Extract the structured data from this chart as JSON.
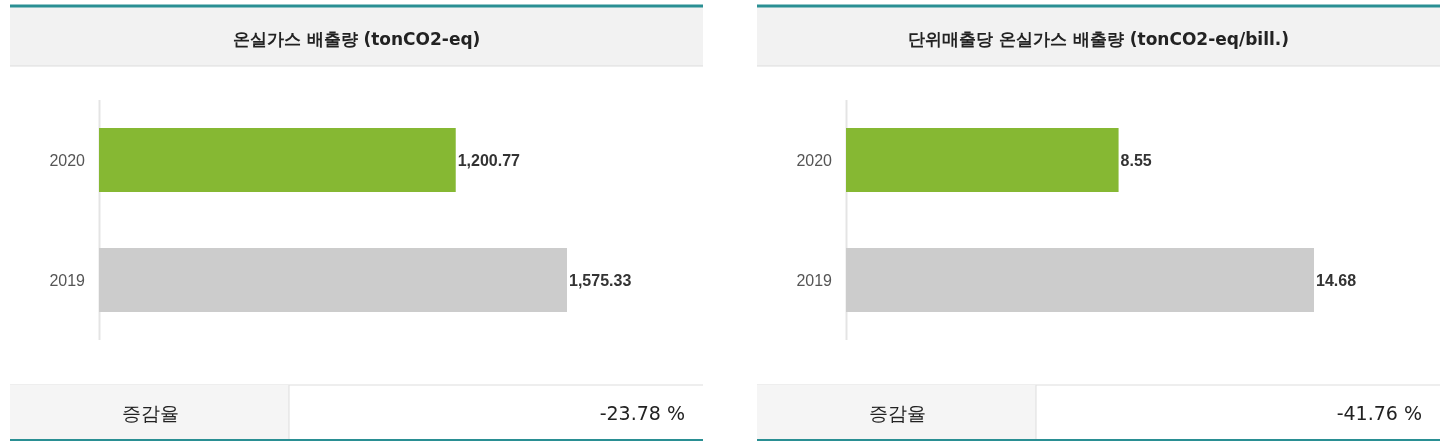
{
  "chart_data": [
    {
      "type": "bar",
      "orientation": "horizontal",
      "title": "온실가스 배출량 (tonCO2-eq)",
      "categories": [
        "2020",
        "2019"
      ],
      "values": [
        1200.77,
        1575.33
      ],
      "colors": [
        "#86b833",
        "#cccccc"
      ],
      "value_labels": [
        "1,200.77",
        "1,575.33"
      ],
      "annotations": [
        "증감율",
        "-23.78 %"
      ]
    },
    {
      "type": "bar",
      "orientation": "horizontal",
      "title": "단위매출당 온실가스 배출량 (tonCO2-eq/bill.)",
      "categories": [
        "2020",
        "2019"
      ],
      "values": [
        8.55,
        14.68
      ],
      "colors": [
        "#86b833",
        "#cccccc"
      ],
      "data_labels": true,
      "annotations": [
        "증감율",
        "-41.76 %"
      ]
    }
  ]
}
